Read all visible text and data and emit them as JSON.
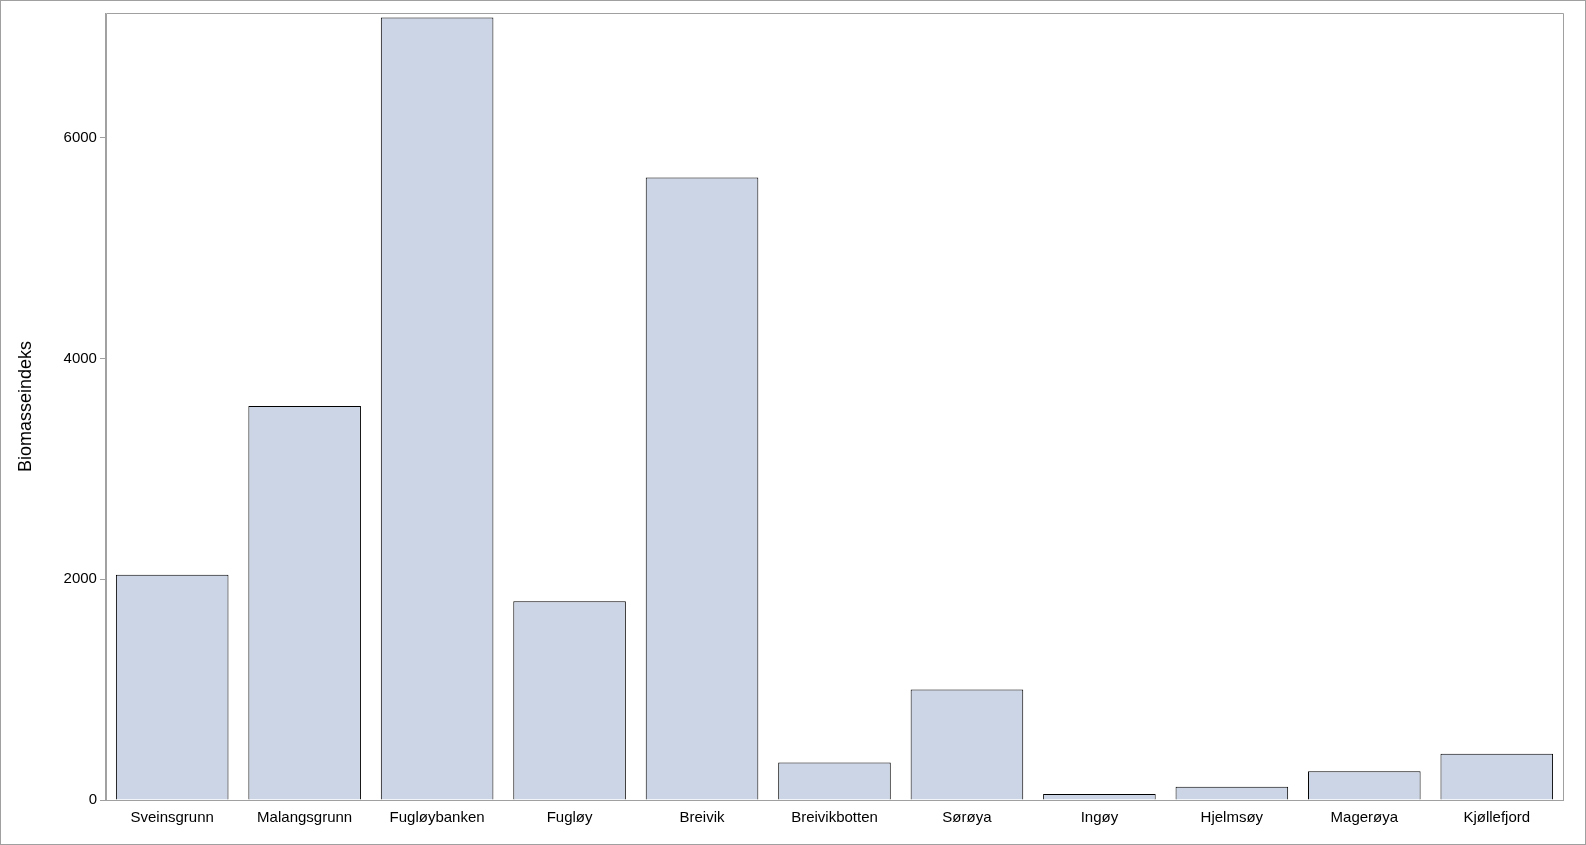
{
  "chart_data": {
    "type": "bar",
    "ylabel": "Biomasseindeks",
    "categories": [
      "Sveinsgrunn",
      "Malangsgrunn",
      "Fugløybanken",
      "Fugløy",
      "Breivik",
      "Breivikbotten",
      "Sørøya",
      "Ingøy",
      "Hjelmsøy",
      "Magerøya",
      "Kjøllefjord"
    ],
    "values": [
      2040,
      3570,
      7090,
      1800,
      5640,
      340,
      1000,
      55,
      120,
      260,
      420
    ],
    "color": "#cbd5e5",
    "ylim": [
      0,
      7130
    ],
    "yticks": [
      0,
      2000,
      4000,
      6000
    ],
    "grid": false,
    "legend": false
  }
}
